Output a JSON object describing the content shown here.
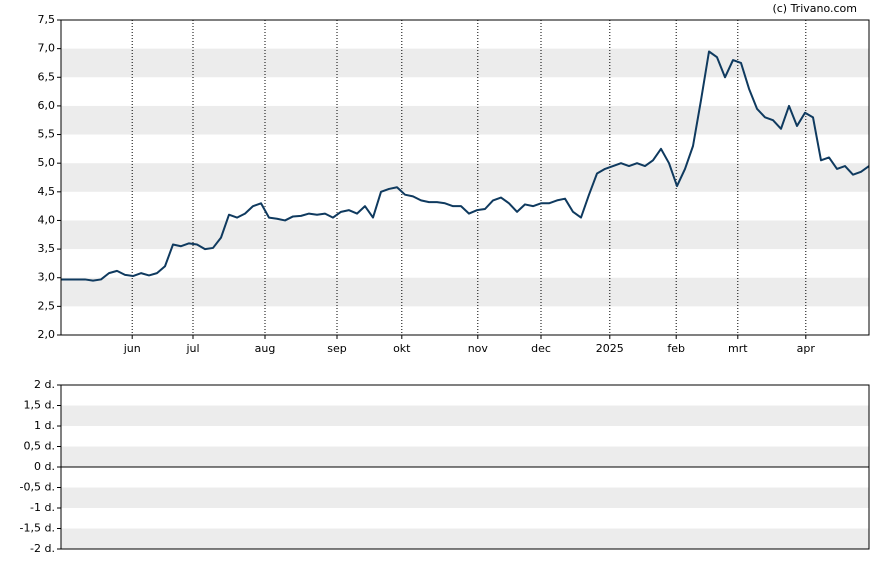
{
  "watermark": "(c) Trivano.com",
  "chart_data": [
    {
      "type": "line",
      "series": [
        {
          "color": "#0f3a5f",
          "values": [
            2.97,
            2.97,
            2.97,
            2.97,
            2.95,
            2.97,
            3.08,
            3.12,
            3.05,
            3.03,
            3.08,
            3.04,
            3.08,
            3.2,
            3.58,
            3.55,
            3.6,
            3.58,
            3.5,
            3.52,
            3.7,
            4.1,
            4.05,
            4.12,
            4.25,
            4.3,
            4.05,
            4.03,
            4.0,
            4.07,
            4.08,
            4.12,
            4.1,
            4.12,
            4.05,
            4.15,
            4.18,
            4.12,
            4.25,
            4.05,
            4.5,
            4.55,
            4.58,
            4.45,
            4.42,
            4.35,
            4.32,
            4.32,
            4.3,
            4.25,
            4.25,
            4.12,
            4.18,
            4.2,
            4.35,
            4.4,
            4.3,
            4.15,
            4.28,
            4.25,
            4.3,
            4.3,
            4.35,
            4.38,
            4.15,
            4.05,
            4.45,
            4.82,
            4.9,
            4.95,
            5.0,
            4.95,
            5.0,
            4.95,
            5.05,
            5.25,
            5.0,
            4.6,
            4.9,
            5.3,
            6.1,
            6.95,
            6.85,
            6.5,
            6.8,
            6.75,
            6.3,
            5.95,
            5.8,
            5.75,
            5.6,
            6.0,
            5.65,
            5.88,
            5.8,
            5.05,
            5.1,
            4.9,
            4.95,
            4.8,
            4.85,
            4.95
          ]
        }
      ],
      "xlim": [
        0,
        101
      ],
      "xticks": [
        {
          "value": 8.9,
          "label": "jun"
        },
        {
          "value": 16.5,
          "label": "jul"
        },
        {
          "value": 25.5,
          "label": "aug"
        },
        {
          "value": 34.5,
          "label": "sep"
        },
        {
          "value": 42.6,
          "label": "okt"
        },
        {
          "value": 52.1,
          "label": "nov"
        },
        {
          "value": 60,
          "label": "dec"
        },
        {
          "value": 68.6,
          "label": "2025"
        },
        {
          "value": 76.9,
          "label": "feb"
        },
        {
          "value": 84.6,
          "label": "mrt"
        },
        {
          "value": 93.1,
          "label": "apr"
        }
      ],
      "ylim": [
        2.0,
        7.5
      ],
      "yticks": [
        {
          "value": 2.0,
          "label": "2,0"
        },
        {
          "value": 2.5,
          "label": "2,5"
        },
        {
          "value": 3.0,
          "label": "3,0"
        },
        {
          "value": 3.5,
          "label": "3,5"
        },
        {
          "value": 4.0,
          "label": "4,0"
        },
        {
          "value": 4.5,
          "label": "4,5"
        },
        {
          "value": 5.0,
          "label": "5,0"
        },
        {
          "value": 5.5,
          "label": "5,5"
        },
        {
          "value": 6.0,
          "label": "6,0"
        },
        {
          "value": 6.5,
          "label": "6,5"
        },
        {
          "value": 7.0,
          "label": "7,0"
        },
        {
          "value": 7.5,
          "label": "7,5"
        }
      ]
    },
    {
      "type": "bar",
      "ylim": [
        -2,
        2
      ],
      "yticks": [
        {
          "value": 2,
          "label": "2 d."
        },
        {
          "value": 1.5,
          "label": "1,5 d."
        },
        {
          "value": 1,
          "label": "1 d."
        },
        {
          "value": 0.5,
          "label": "0,5 d."
        },
        {
          "value": 0,
          "label": "0 d."
        },
        {
          "value": -0.5,
          "label": "-0,5 d."
        },
        {
          "value": -1,
          "label": "-1 d."
        },
        {
          "value": -1.5,
          "label": "-1,5 d."
        },
        {
          "value": -2,
          "label": "-2 d."
        }
      ]
    }
  ]
}
